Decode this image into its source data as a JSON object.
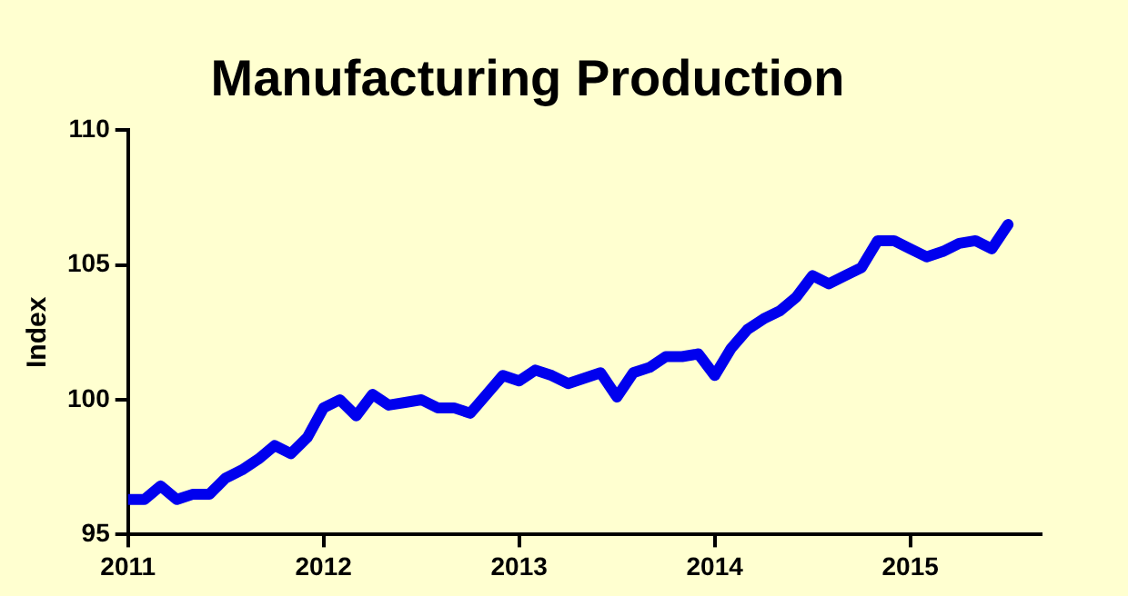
{
  "chart_data": {
    "type": "line",
    "title": "Manufacturing Production",
    "ylabel": "Index",
    "x": [
      "2011-01",
      "2011-02",
      "2011-03",
      "2011-04",
      "2011-05",
      "2011-06",
      "2011-07",
      "2011-08",
      "2011-09",
      "2011-10",
      "2011-11",
      "2011-12",
      "2012-01",
      "2012-02",
      "2012-03",
      "2012-04",
      "2012-05",
      "2012-06",
      "2012-07",
      "2012-08",
      "2012-09",
      "2012-10",
      "2012-11",
      "2012-12",
      "2013-01",
      "2013-02",
      "2013-03",
      "2013-04",
      "2013-05",
      "2013-06",
      "2013-07",
      "2013-08",
      "2013-09",
      "2013-10",
      "2013-11",
      "2013-12",
      "2014-01",
      "2014-02",
      "2014-03",
      "2014-04",
      "2014-05",
      "2014-06",
      "2014-07",
      "2014-08",
      "2014-09",
      "2014-10",
      "2014-11",
      "2014-12",
      "2015-01",
      "2015-02",
      "2015-03",
      "2015-04",
      "2015-05",
      "2015-06",
      "2015-07"
    ],
    "series": [
      {
        "color": "#0000ee",
        "values": [
          96.3,
          96.3,
          96.8,
          96.3,
          96.5,
          96.5,
          97.1,
          97.4,
          97.8,
          98.3,
          98.0,
          98.6,
          99.7,
          100.0,
          99.4,
          100.2,
          99.8,
          99.9,
          100.0,
          99.7,
          99.7,
          99.5,
          100.2,
          100.9,
          100.7,
          101.1,
          100.9,
          100.6,
          100.8,
          101.0,
          100.1,
          101.0,
          101.2,
          101.6,
          101.6,
          101.7,
          100.9,
          101.9,
          102.6,
          103.0,
          103.3,
          103.8,
          104.6,
          104.3,
          104.6,
          104.9,
          105.9,
          105.9,
          105.6,
          105.3,
          105.5,
          105.8,
          105.9,
          105.6,
          106.5
        ]
      }
    ],
    "xlim": [
      "2011-01",
      "2015-09"
    ],
    "xticks": [
      "2011",
      "2012",
      "2013",
      "2014",
      "2015"
    ],
    "ylim": [
      95,
      110
    ],
    "yticks": [
      95,
      100,
      105,
      110
    ],
    "grid": false,
    "legend": false,
    "marker": "none",
    "line_style": "solid"
  }
}
